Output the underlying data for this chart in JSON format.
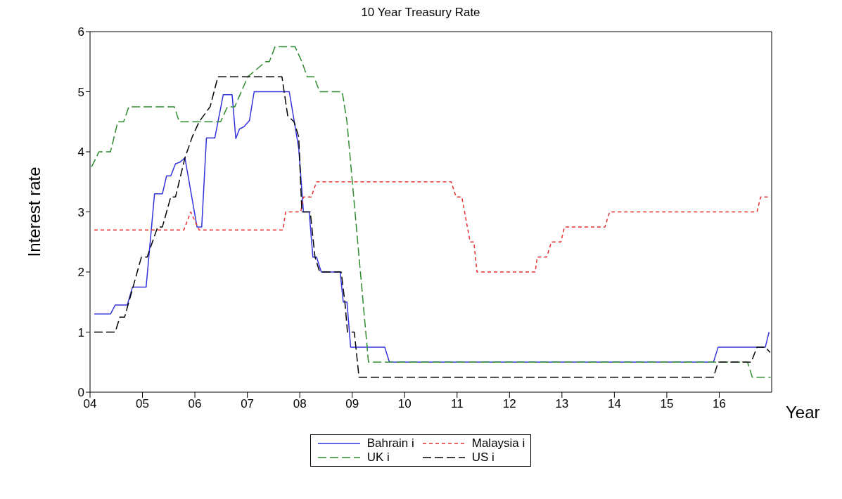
{
  "chart_data": {
    "type": "line",
    "title": "10 Year Treasury Rate",
    "xlabel": "Year",
    "ylabel": "Interest rate",
    "xlim": [
      2004,
      2017
    ],
    "ylim": [
      0,
      6
    ],
    "yticks": [
      0,
      1,
      2,
      3,
      4,
      5,
      6
    ],
    "xticks": [
      {
        "value": 2004,
        "label": "04"
      },
      {
        "value": 2005,
        "label": "05"
      },
      {
        "value": 2006,
        "label": "06"
      },
      {
        "value": 2007,
        "label": "07"
      },
      {
        "value": 2008,
        "label": "08"
      },
      {
        "value": 2009,
        "label": "09"
      },
      {
        "value": 2010,
        "label": "10"
      },
      {
        "value": 2011,
        "label": "11"
      },
      {
        "value": 2012,
        "label": "12"
      },
      {
        "value": 2013,
        "label": "13"
      },
      {
        "value": 2014,
        "label": "14"
      },
      {
        "value": 2015,
        "label": "15"
      },
      {
        "value": 2016,
        "label": "16"
      }
    ],
    "grid": false,
    "legend": "bottom",
    "marker": "none",
    "series": [
      {
        "name": "Bahrain i",
        "color": "#3333dd",
        "line_style": "solid",
        "x": [
          2004.08,
          2004.39,
          2004.48,
          2004.71,
          2004.81,
          2005.07,
          2005.23,
          2005.38,
          2005.46,
          2005.54,
          2005.63,
          2005.72,
          2005.81,
          2006.04,
          2006.13,
          2006.22,
          2006.38,
          2006.54,
          2006.71,
          2006.78,
          2006.85,
          2006.94,
          2007.04,
          2007.13,
          2007.8,
          2007.98,
          2008.07,
          2008.18,
          2008.25,
          2008.32,
          2008.41,
          2008.77,
          2008.83,
          2008.9,
          2008.97,
          2009.62,
          2009.71,
          2015.89,
          2015.98,
          2016.88,
          2016.95
        ],
        "values": [
          1.3,
          1.3,
          1.45,
          1.45,
          1.75,
          1.75,
          3.3,
          3.3,
          3.6,
          3.6,
          3.8,
          3.83,
          3.9,
          2.75,
          2.75,
          4.23,
          4.23,
          4.95,
          4.95,
          4.22,
          4.38,
          4.42,
          4.52,
          5.0,
          5.0,
          4.06,
          3.0,
          3.0,
          2.25,
          2.25,
          2.0,
          2.0,
          1.5,
          1.5,
          0.75,
          0.75,
          0.5,
          0.5,
          0.75,
          0.75,
          1.0
        ]
      },
      {
        "name": "Malaysia i",
        "color": "#e83030",
        "line_style": "dotted",
        "x": [
          2004.08,
          2005.79,
          2005.92,
          2006.08,
          2007.68,
          2007.73,
          2008.02,
          2008.07,
          2008.22,
          2008.32,
          2010.89,
          2010.98,
          2011.09,
          2011.25,
          2011.32,
          2011.38,
          2012.49,
          2012.53,
          2012.71,
          2012.8,
          2012.98,
          2013.05,
          2013.82,
          2013.91,
          2016.72,
          2016.79,
          2016.97
        ],
        "values": [
          2.7,
          2.7,
          3.0,
          2.7,
          2.7,
          3.0,
          3.0,
          3.25,
          3.25,
          3.5,
          3.5,
          3.25,
          3.25,
          2.5,
          2.5,
          2.0,
          2.0,
          2.25,
          2.25,
          2.5,
          2.5,
          2.75,
          2.75,
          3.0,
          3.0,
          3.25,
          3.25
        ]
      },
      {
        "name": "UK i",
        "color": "#2e8b2e",
        "line_style": "dashed",
        "x": [
          2004.03,
          2004.17,
          2004.39,
          2004.53,
          2004.64,
          2004.74,
          2005.61,
          2005.7,
          2006.49,
          2006.62,
          2006.76,
          2007.01,
          2007.35,
          2007.42,
          2007.53,
          2007.91,
          2008.04,
          2008.14,
          2008.27,
          2008.38,
          2008.81,
          2008.9,
          2009.31,
          2016.54,
          2016.63,
          2016.98
        ],
        "values": [
          3.75,
          4.0,
          4.0,
          4.5,
          4.5,
          4.75,
          4.75,
          4.5,
          4.5,
          4.75,
          4.75,
          5.25,
          5.5,
          5.5,
          5.75,
          5.75,
          5.5,
          5.25,
          5.25,
          5.0,
          5.0,
          4.5,
          0.5,
          0.5,
          0.25,
          0.25
        ]
      },
      {
        "name": "US i",
        "color": "#000000",
        "line_style": "dashed",
        "x": [
          2004.08,
          2004.48,
          2004.57,
          2004.66,
          2004.98,
          2005.09,
          2005.29,
          2005.38,
          2005.54,
          2005.63,
          2005.81,
          2005.95,
          2006.08,
          2006.29,
          2006.44,
          2007.66,
          2007.77,
          2007.89,
          2007.98,
          2008.04,
          2008.2,
          2008.29,
          2008.38,
          2008.79,
          2008.86,
          2008.91,
          2009.04,
          2009.13,
          2015.89,
          2015.98,
          2016.61,
          2016.72,
          2016.88,
          2016.97
        ],
        "values": [
          1.0,
          1.0,
          1.25,
          1.25,
          2.25,
          2.25,
          2.75,
          2.75,
          3.25,
          3.25,
          3.9,
          4.25,
          4.5,
          4.75,
          5.25,
          5.25,
          4.6,
          4.5,
          4.25,
          3.0,
          3.0,
          2.25,
          2.0,
          2.0,
          1.5,
          1.0,
          1.0,
          0.25,
          0.25,
          0.5,
          0.5,
          0.75,
          0.75,
          0.66
        ]
      }
    ]
  }
}
